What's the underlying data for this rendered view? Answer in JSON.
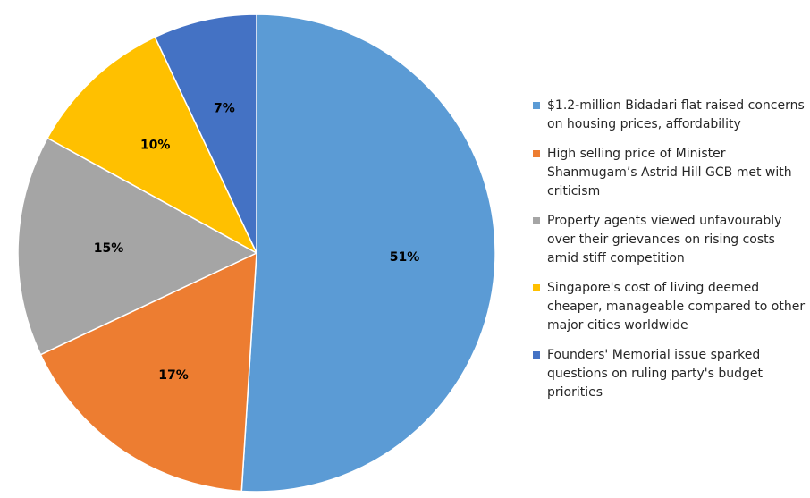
{
  "chart_data": {
    "type": "pie",
    "title": "",
    "start_angle_deg": 0,
    "direction": "clockwise",
    "slices": [
      {
        "label": "$1.2-million Bidadari flat raised concerns on housing prices, affordability",
        "value": 51,
        "display": "51%",
        "color": "#5B9BD5"
      },
      {
        "label": "High selling price of Minister Shanmugam’s Astrid Hill GCB met with criticism",
        "value": 17,
        "display": "17%",
        "color": "#ED7D31"
      },
      {
        "label": "Property agents viewed unfavourably over their grievances on rising costs amid stiff competition",
        "value": 15,
        "display": "15%",
        "color": "#A5A5A5"
      },
      {
        "label": "Singapore's cost of living deemed cheaper, manageable compared to other major cities worldwide",
        "value": 10,
        "display": "10%",
        "color": "#FFC000"
      },
      {
        "label": "Founders' Memorial issue sparked questions on ruling party's budget priorities",
        "value": 7,
        "display": "7%",
        "color": "#4472C4"
      }
    ],
    "legend_position": "right"
  }
}
